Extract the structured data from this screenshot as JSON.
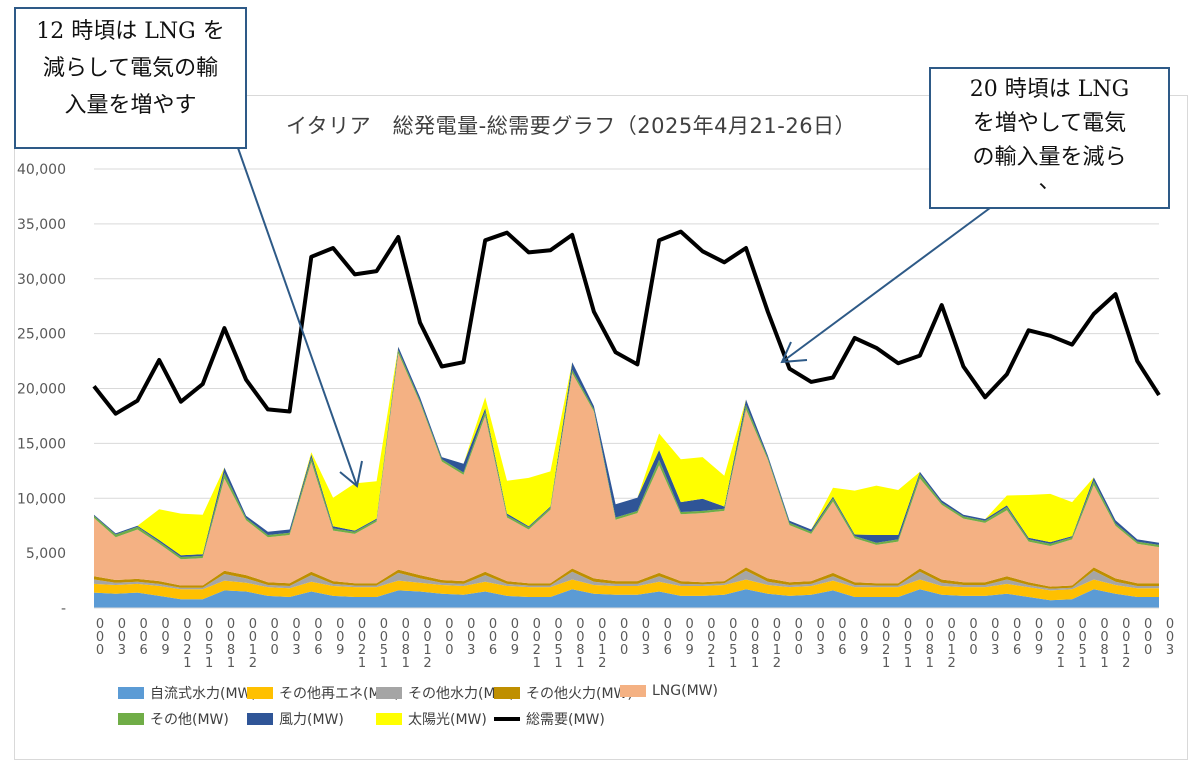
{
  "chart_data": {
    "type": "area",
    "title": "イタリア　総発電量-総需要グラフ（2025年4月21-26日）",
    "xlabel": "",
    "ylabel": "",
    "ylim": [
      0,
      40000
    ],
    "yticks": [
      0,
      5000,
      10000,
      15000,
      20000,
      25000,
      30000,
      35000,
      40000
    ],
    "ytick_labels": [
      "-",
      "5,000",
      "10,000",
      "15,000",
      "20,000",
      "25,000",
      "30,000",
      "35,000",
      "40,000"
    ],
    "grid": true,
    "legend_position": "bottom",
    "x_hours": [
      0,
      3,
      6,
      9,
      12,
      15,
      18,
      21,
      24,
      27,
      30,
      33,
      36,
      39,
      42,
      45,
      48,
      51,
      54,
      57,
      60,
      63,
      66,
      69,
      72,
      75,
      78,
      81,
      84,
      87,
      90,
      93,
      96,
      99,
      102,
      105,
      108,
      111,
      114,
      117,
      120,
      123,
      126,
      129,
      132,
      135,
      138,
      141,
      144,
      147
    ],
    "xtick_labels": [
      "0",
      "3",
      "6",
      "9",
      "12",
      "15",
      "18",
      "21",
      "0",
      "3",
      "6",
      "9",
      "12",
      "15",
      "18",
      "21",
      "0",
      "3",
      "6",
      "9",
      "12",
      "15",
      "18",
      "21",
      "0",
      "3",
      "6",
      "9",
      "12",
      "15",
      "18",
      "21",
      "0",
      "3",
      "6",
      "9",
      "12",
      "15",
      "18",
      "21",
      "0",
      "3",
      "6",
      "9",
      "12",
      "15",
      "18",
      "21",
      "0",
      "3"
    ],
    "series": [
      {
        "name": "自流式水力(MW)",
        "color": "#5b9bd5",
        "kind": "area",
        "values": [
          1400,
          1300,
          1400,
          1100,
          800,
          800,
          1600,
          1500,
          1100,
          1000,
          1500,
          1100,
          1000,
          1000,
          1600,
          1500,
          1300,
          1200,
          1500,
          1100,
          1000,
          1000,
          1700,
          1300,
          1200,
          1200,
          1500,
          1100,
          1100,
          1200,
          1700,
          1300,
          1100,
          1200,
          1600,
          1000,
          1000,
          1000,
          1700,
          1200,
          1100,
          1100,
          1300,
          1000,
          700,
          800,
          1700,
          1300,
          1000,
          1000
        ]
      },
      {
        "name": "その他再エネ(MW)",
        "color": "#ffc000",
        "kind": "area",
        "values": [
          800,
          800,
          800,
          900,
          900,
          900,
          900,
          800,
          800,
          800,
          900,
          900,
          900,
          900,
          900,
          800,
          800,
          800,
          900,
          900,
          900,
          900,
          900,
          800,
          800,
          800,
          900,
          900,
          900,
          900,
          900,
          800,
          800,
          800,
          900,
          900,
          900,
          900,
          900,
          800,
          800,
          800,
          900,
          900,
          900,
          900,
          900,
          800,
          800,
          800
        ]
      },
      {
        "name": "その他水力(MW)",
        "color": "#a5a5a5",
        "kind": "area",
        "values": [
          400,
          200,
          200,
          200,
          150,
          150,
          600,
          400,
          200,
          200,
          600,
          200,
          150,
          150,
          700,
          400,
          200,
          200,
          600,
          200,
          150,
          150,
          700,
          300,
          200,
          200,
          500,
          200,
          150,
          150,
          800,
          300,
          200,
          200,
          400,
          200,
          150,
          150,
          700,
          300,
          200,
          200,
          400,
          200,
          150,
          150,
          800,
          300,
          200,
          200
        ]
      },
      {
        "name": "その他火力(MW)",
        "color": "#bf8f00",
        "kind": "area",
        "values": [
          300,
          250,
          250,
          250,
          200,
          200,
          300,
          300,
          250,
          250,
          300,
          250,
          200,
          200,
          300,
          300,
          250,
          250,
          300,
          250,
          200,
          200,
          300,
          300,
          250,
          250,
          300,
          250,
          200,
          200,
          300,
          300,
          250,
          250,
          300,
          250,
          200,
          200,
          300,
          300,
          250,
          250,
          300,
          250,
          200,
          200,
          300,
          300,
          250,
          250
        ]
      },
      {
        "name": "LNG(MW)",
        "color": "#f4b183",
        "kind": "area",
        "values": [
          5300,
          3900,
          4500,
          3400,
          2400,
          2500,
          8400,
          5000,
          4100,
          4400,
          10000,
          4600,
          4500,
          5600,
          19700,
          15700,
          10800,
          9700,
          14200,
          5800,
          4900,
          6700,
          17800,
          15200,
          5600,
          6200,
          9800,
          6100,
          6300,
          6400,
          14400,
          10800,
          5200,
          4300,
          6500,
          4000,
          3500,
          3800,
          8200,
          6800,
          5800,
          5400,
          6000,
          3700,
          3700,
          4200,
          7500,
          4800,
          3600,
          3300
        ]
      },
      {
        "name": "その他(MW)",
        "color": "#70ad47",
        "kind": "area",
        "values": [
          200,
          250,
          250,
          200,
          200,
          200,
          500,
          200,
          200,
          200,
          400,
          200,
          200,
          200,
          300,
          200,
          200,
          200,
          400,
          200,
          200,
          200,
          300,
          200,
          200,
          200,
          500,
          200,
          200,
          200,
          400,
          200,
          200,
          200,
          300,
          200,
          200,
          200,
          400,
          200,
          200,
          200,
          300,
          200,
          200,
          200,
          400,
          200,
          200,
          200
        ]
      },
      {
        "name": "風力(MW)",
        "color": "#2f5597",
        "kind": "area",
        "values": [
          100,
          100,
          100,
          150,
          150,
          150,
          500,
          200,
          300,
          300,
          300,
          200,
          100,
          100,
          300,
          300,
          200,
          800,
          300,
          150,
          100,
          100,
          700,
          300,
          1200,
          1200,
          900,
          900,
          1100,
          200,
          500,
          200,
          200,
          200,
          150,
          150,
          700,
          400,
          200,
          200,
          150,
          150,
          150,
          150,
          150,
          100,
          300,
          300,
          200,
          200
        ]
      },
      {
        "name": "太陽光(MW)",
        "color": "#ffff00",
        "kind": "area",
        "values": [
          0,
          0,
          0,
          2800,
          3800,
          3600,
          0,
          0,
          0,
          0,
          200,
          2600,
          4300,
          3400,
          0,
          0,
          0,
          0,
          1000,
          3000,
          4400,
          3200,
          0,
          0,
          0,
          0,
          1500,
          3900,
          3800,
          2800,
          0,
          0,
          0,
          0,
          800,
          4000,
          4500,
          4100,
          0,
          0,
          0,
          0,
          900,
          3900,
          4400,
          3100,
          0,
          0,
          0,
          0
        ]
      },
      {
        "name": "総需要(MW)",
        "color": "#000000",
        "kind": "line",
        "values": [
          20200,
          17700,
          18900,
          22600,
          18800,
          20400,
          25500,
          20800,
          18100,
          17900,
          32000,
          32800,
          30400,
          30700,
          33800,
          26000,
          22000,
          22400,
          33500,
          34200,
          32400,
          32600,
          34000,
          27000,
          23300,
          22200,
          33500,
          34300,
          32500,
          31500,
          32800,
          27000,
          21800,
          20600,
          21000,
          24600,
          23700,
          22300,
          23000,
          27600,
          22000,
          19200,
          21300,
          25300,
          24800,
          24000,
          26800,
          28600,
          22500,
          19400
        ]
      }
    ]
  },
  "callouts": [
    {
      "lines": [
        "12 時頃は LNG を",
        "減らして電気の輸",
        "入量を増やす"
      ]
    },
    {
      "lines": [
        "20 時頃は LNG",
        "を増やして電気",
        "の輸入量を減ら",
        "、"
      ]
    }
  ]
}
